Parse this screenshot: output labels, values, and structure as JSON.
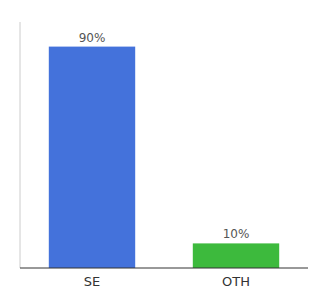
{
  "chart_data": {
    "type": "bar",
    "categories": [
      "SE",
      "OTH"
    ],
    "values": [
      90,
      10
    ],
    "value_labels": [
      "90%",
      "10%"
    ],
    "colors": [
      "#4472db",
      "#3dba3d"
    ],
    "ylim": [
      0,
      100
    ],
    "data_labels": true,
    "tick_labels": "x",
    "grid": false
  }
}
